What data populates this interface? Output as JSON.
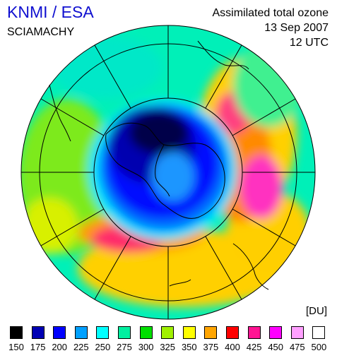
{
  "header": {
    "organization": "KNMI / ESA",
    "instrument": "SCIAMACHY",
    "product": "Assimilated total ozone",
    "date": "13 Sep 2007",
    "time": "12 UTC"
  },
  "legend": {
    "unit": "[DU]",
    "items": [
      {
        "label": "150",
        "color": "#000000"
      },
      {
        "label": "175",
        "color": "#0000b4"
      },
      {
        "label": "200",
        "color": "#0000ff"
      },
      {
        "label": "225",
        "color": "#00a0ff"
      },
      {
        "label": "250",
        "color": "#00ffff"
      },
      {
        "label": "275",
        "color": "#00f0a0"
      },
      {
        "label": "300",
        "color": "#00e000"
      },
      {
        "label": "325",
        "color": "#a0f000"
      },
      {
        "label": "350",
        "color": "#ffff00"
      },
      {
        "label": "375",
        "color": "#ffa500"
      },
      {
        "label": "400",
        "color": "#ff0000"
      },
      {
        "label": "425",
        "color": "#ff1493"
      },
      {
        "label": "450",
        "color": "#ff00ff"
      },
      {
        "label": "475",
        "color": "#ffa0ff"
      },
      {
        "label": "500",
        "color": "#ffffff"
      }
    ]
  }
}
